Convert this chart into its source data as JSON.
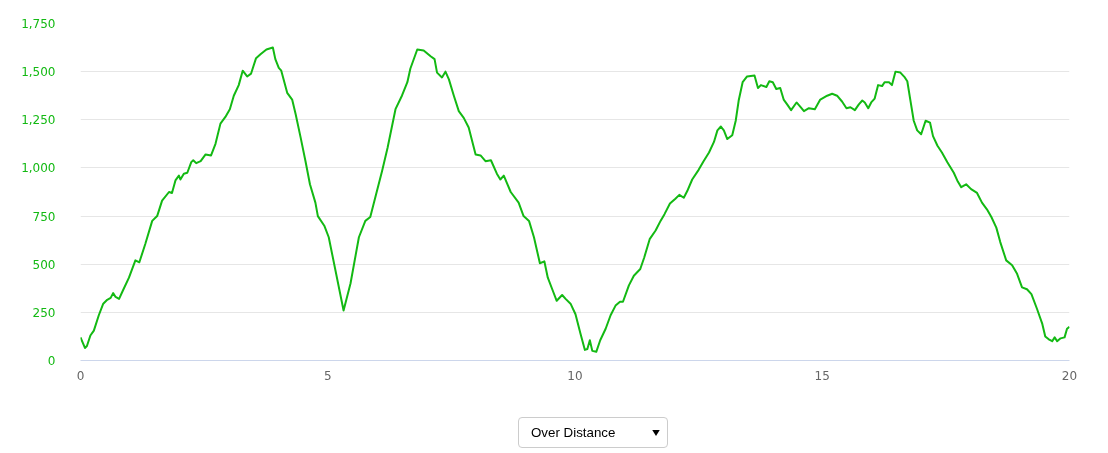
{
  "chart_data": {
    "type": "line",
    "color": "#13b913",
    "line_style": "solid",
    "grid": "y",
    "xlim": [
      0,
      20
    ],
    "ylim": [
      0,
      1750
    ],
    "xticks": [
      0,
      5,
      10,
      15,
      20
    ],
    "yticks": [
      0,
      250,
      500,
      750,
      {
        "value": 1000,
        "label": "1,000"
      },
      {
        "value": 1250,
        "label": "1,250"
      },
      {
        "value": 1500,
        "label": "1,500"
      },
      {
        "value": 1750,
        "label": "1,750"
      }
    ],
    "x": [
      0,
      0.09,
      0.13,
      0.2,
      0.27,
      0.37,
      0.46,
      0.54,
      0.61,
      0.66,
      0.71,
      0.78,
      0.86,
      0.98,
      1.11,
      1.19,
      1.31,
      1.45,
      1.55,
      1.65,
      1.79,
      1.85,
      1.92,
      1.99,
      2.02,
      2.09,
      2.16,
      2.24,
      2.28,
      2.34,
      2.43,
      2.53,
      2.64,
      2.73,
      2.83,
      2.93,
      3.02,
      3.1,
      3.2,
      3.28,
      3.37,
      3.45,
      3.55,
      3.64,
      3.76,
      3.89,
      3.94,
      4.01,
      4.06,
      4.18,
      4.28,
      4.35,
      4.45,
      4.55,
      4.64,
      4.75,
      4.8,
      4.93,
      5.02,
      5.32,
      5.46,
      5.63,
      5.76,
      5.86,
      5.97,
      6.1,
      6.21,
      6.37,
      6.5,
      6.61,
      6.67,
      6.81,
      6.94,
      7.08,
      7.16,
      7.21,
      7.31,
      7.38,
      7.45,
      7.55,
      7.65,
      7.75,
      7.85,
      7.99,
      8.09,
      8.19,
      8.3,
      8.42,
      8.49,
      8.56,
      8.7,
      8.86,
      8.96,
      9.07,
      9.17,
      9.29,
      9.38,
      9.45,
      9.54,
      9.63,
      9.74,
      9.81,
      9.91,
      10.01,
      10.11,
      10.2,
      10.25,
      10.3,
      10.35,
      10.43,
      10.51,
      10.62,
      10.72,
      10.82,
      10.91,
      10.97,
      11.09,
      11.19,
      11.32,
      11.4,
      11.51,
      11.63,
      11.73,
      11.81,
      11.92,
      12.03,
      12.11,
      12.2,
      12.27,
      12.37,
      12.5,
      12.6,
      12.71,
      12.81,
      12.88,
      12.95,
      13.01,
      13.08,
      13.18,
      13.25,
      13.31,
      13.39,
      13.48,
      13.63,
      13.7,
      13.76,
      13.87,
      13.93,
      14.0,
      14.07,
      14.15,
      14.22,
      14.29,
      14.37,
      14.48,
      14.55,
      14.63,
      14.73,
      14.85,
      14.96,
      15.1,
      15.2,
      15.3,
      15.4,
      15.49,
      15.57,
      15.66,
      15.74,
      15.81,
      15.86,
      15.93,
      15.99,
      16.06,
      16.13,
      16.21,
      16.26,
      16.35,
      16.41,
      16.48,
      16.58,
      16.67,
      16.72,
      16.78,
      16.85,
      16.92,
      17.0,
      17.09,
      17.18,
      17.24,
      17.33,
      17.42,
      17.53,
      17.66,
      17.73,
      17.81,
      17.91,
      18.01,
      18.13,
      18.23,
      18.33,
      18.42,
      18.52,
      18.6,
      18.72,
      18.84,
      18.94,
      19.04,
      19.14,
      19.23,
      19.34,
      19.45,
      19.51,
      19.58,
      19.65,
      19.7,
      19.75,
      19.82,
      19.9,
      19.95,
      20.0
    ],
    "values": [
      120,
      65,
      75,
      130,
      155,
      235,
      295,
      315,
      325,
      350,
      330,
      320,
      365,
      430,
      520,
      510,
      605,
      725,
      750,
      830,
      875,
      870,
      935,
      960,
      940,
      970,
      975,
      1030,
      1040,
      1025,
      1035,
      1070,
      1065,
      1125,
      1230,
      1265,
      1305,
      1375,
      1430,
      1505,
      1475,
      1490,
      1570,
      1590,
      1615,
      1625,
      1565,
      1520,
      1505,
      1390,
      1355,
      1280,
      1160,
      1035,
      915,
      820,
      750,
      700,
      640,
      260,
      400,
      640,
      725,
      745,
      855,
      985,
      1105,
      1305,
      1375,
      1445,
      1515,
      1615,
      1610,
      1580,
      1565,
      1495,
      1470,
      1500,
      1460,
      1375,
      1295,
      1260,
      1210,
      1070,
      1065,
      1035,
      1040,
      970,
      940,
      960,
      875,
      820,
      750,
      725,
      640,
      505,
      515,
      430,
      370,
      310,
      340,
      320,
      295,
      240,
      140,
      55,
      60,
      105,
      50,
      45,
      105,
      165,
      235,
      285,
      305,
      305,
      390,
      440,
      475,
      535,
      630,
      675,
      725,
      760,
      815,
      840,
      860,
      845,
      880,
      940,
      990,
      1035,
      1080,
      1135,
      1195,
      1215,
      1195,
      1150,
      1170,
      1245,
      1350,
      1445,
      1475,
      1480,
      1415,
      1430,
      1420,
      1450,
      1445,
      1410,
      1415,
      1355,
      1330,
      1300,
      1340,
      1320,
      1295,
      1310,
      1305,
      1355,
      1375,
      1385,
      1375,
      1345,
      1310,
      1315,
      1300,
      1330,
      1350,
      1340,
      1310,
      1340,
      1360,
      1430,
      1425,
      1445,
      1445,
      1430,
      1500,
      1495,
      1470,
      1450,
      1355,
      1245,
      1195,
      1175,
      1245,
      1235,
      1165,
      1115,
      1080,
      1030,
      975,
      935,
      900,
      915,
      890,
      870,
      820,
      785,
      745,
      690,
      615,
      520,
      495,
      450,
      380,
      370,
      345,
      270,
      190,
      125,
      110,
      100,
      120,
      100,
      115,
      120,
      165,
      175
    ],
    "annotations": [
      "Over Distance"
    ]
  }
}
